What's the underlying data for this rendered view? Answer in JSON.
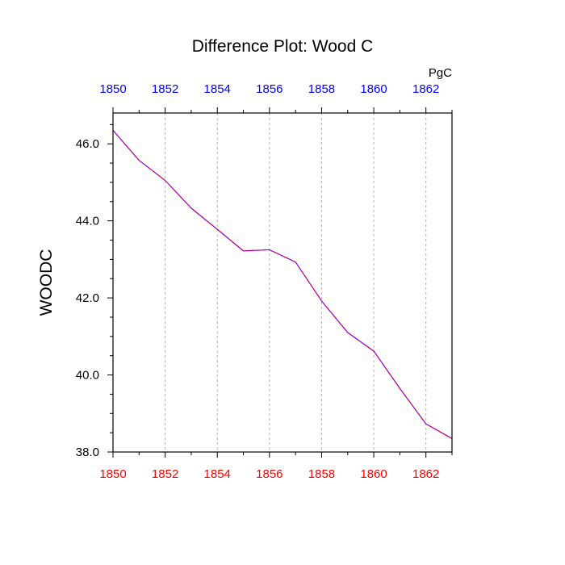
{
  "chart_data": {
    "type": "line",
    "title": "Difference Plot: Wood C",
    "units_label": "PgC",
    "ylabel": "WOODC",
    "xlabel": "",
    "xlim": [
      1850,
      1863
    ],
    "ylim": [
      38.0,
      46.8
    ],
    "x_ticks": [
      "1850",
      "1852",
      "1854",
      "1856",
      "1858",
      "1860",
      "1862"
    ],
    "y_ticks": [
      "38.0",
      "40.0",
      "42.0",
      "44.0",
      "46.0"
    ],
    "grid": "vertical dashed at major x ticks",
    "series": [
      {
        "color": "#8000ff",
        "dash_color": "#ff0000",
        "style": "dashed",
        "x": [
          1850,
          1851,
          1852,
          1853,
          1854,
          1855,
          1856,
          1857,
          1858,
          1859,
          1860,
          1861,
          1862,
          1863
        ],
        "y": [
          46.35,
          45.57,
          45.05,
          44.33,
          43.78,
          43.22,
          43.25,
          42.93,
          41.92,
          41.1,
          40.62,
          39.65,
          38.73,
          38.35
        ]
      }
    ],
    "colors": {
      "top_axis_labels": "#0000ff",
      "bottom_axis_labels": "#ff0000",
      "left_axis_labels": "#000000",
      "grid": "#b3b3b3",
      "frame": "#000000"
    }
  }
}
